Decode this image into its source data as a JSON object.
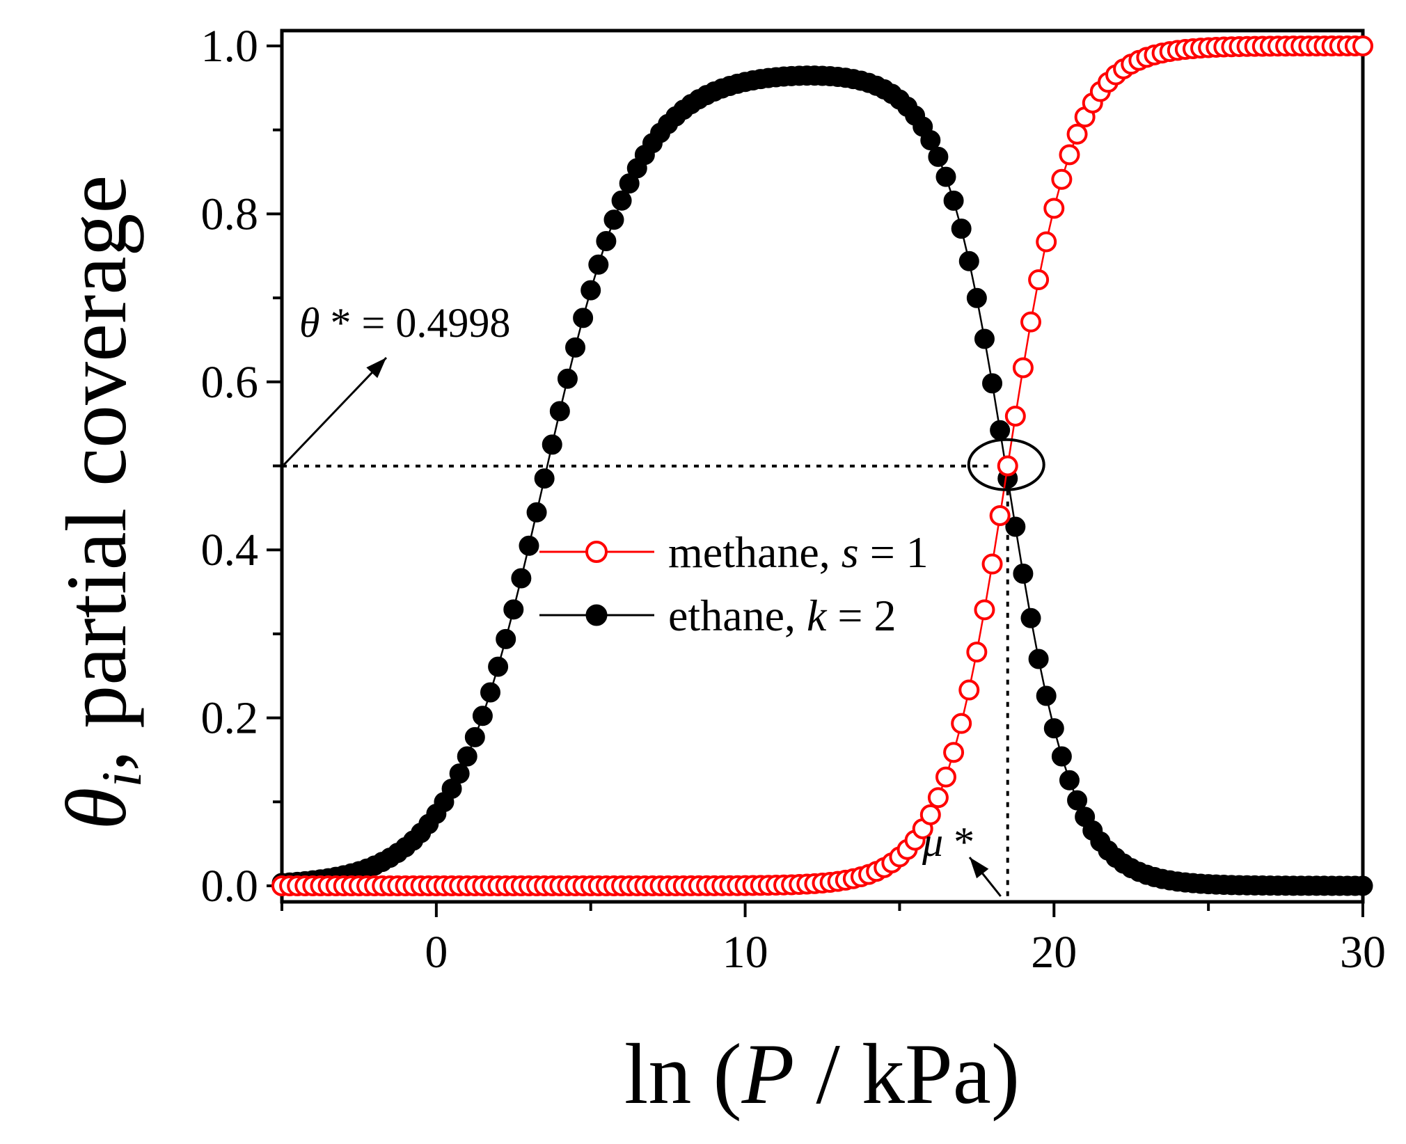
{
  "chart_data": {
    "type": "scatter",
    "title": "",
    "xlabel": {
      "prefix": "ln (",
      "var": "P",
      "suffix": " / kPa)"
    },
    "ylabel": {
      "var": "θ",
      "sub": "i",
      "suffix": ", partial coverage"
    },
    "xlim": [
      -5,
      30
    ],
    "ylim": [
      0,
      1.0
    ],
    "x_major_ticks": [
      0,
      10,
      20,
      30
    ],
    "x_minor_ticks": [
      -5,
      5,
      15,
      25
    ],
    "y_major_ticks": [
      0.0,
      0.2,
      0.4,
      0.6,
      0.8,
      1.0
    ],
    "y_minor_ticks": [
      0.1,
      0.3,
      0.5,
      0.7,
      0.9
    ],
    "x_tick_labels": [
      "0",
      "10",
      "20",
      "30"
    ],
    "y_tick_labels": [
      "0.0",
      "0.2",
      "0.4",
      "0.6",
      "0.8",
      "1.0"
    ],
    "series": [
      {
        "name": "methane",
        "legend_label": {
          "name": "methane, ",
          "var": "s",
          "rest": " = 1"
        },
        "marker": "open-circle",
        "color": "#ff0000",
        "model": {
          "form": "logistic",
          "center": 18.5,
          "scale": 1.05
        },
        "x_start": -5,
        "x_end": 30,
        "x_step": 0.25
      },
      {
        "name": "ethane",
        "legend_label": {
          "name": "ethane, ",
          "var": "k",
          "rest": " = 2"
        },
        "marker": "filled-circle",
        "color": "#000000",
        "model": {
          "form": "bell",
          "rise_center": 3.5,
          "rise_scale": 1.5,
          "fall_center": 18.5,
          "fall_scale": 1.05,
          "peak": 0.97
        },
        "x_start": -5,
        "x_end": 30,
        "x_step": 0.25
      }
    ],
    "annotations": {
      "theta_star": {
        "var": "θ",
        "rest": " * = 0.4998",
        "value": 0.4998
      },
      "mu_star": {
        "var": "μ",
        "rest": " *",
        "x": 18.5
      }
    }
  }
}
